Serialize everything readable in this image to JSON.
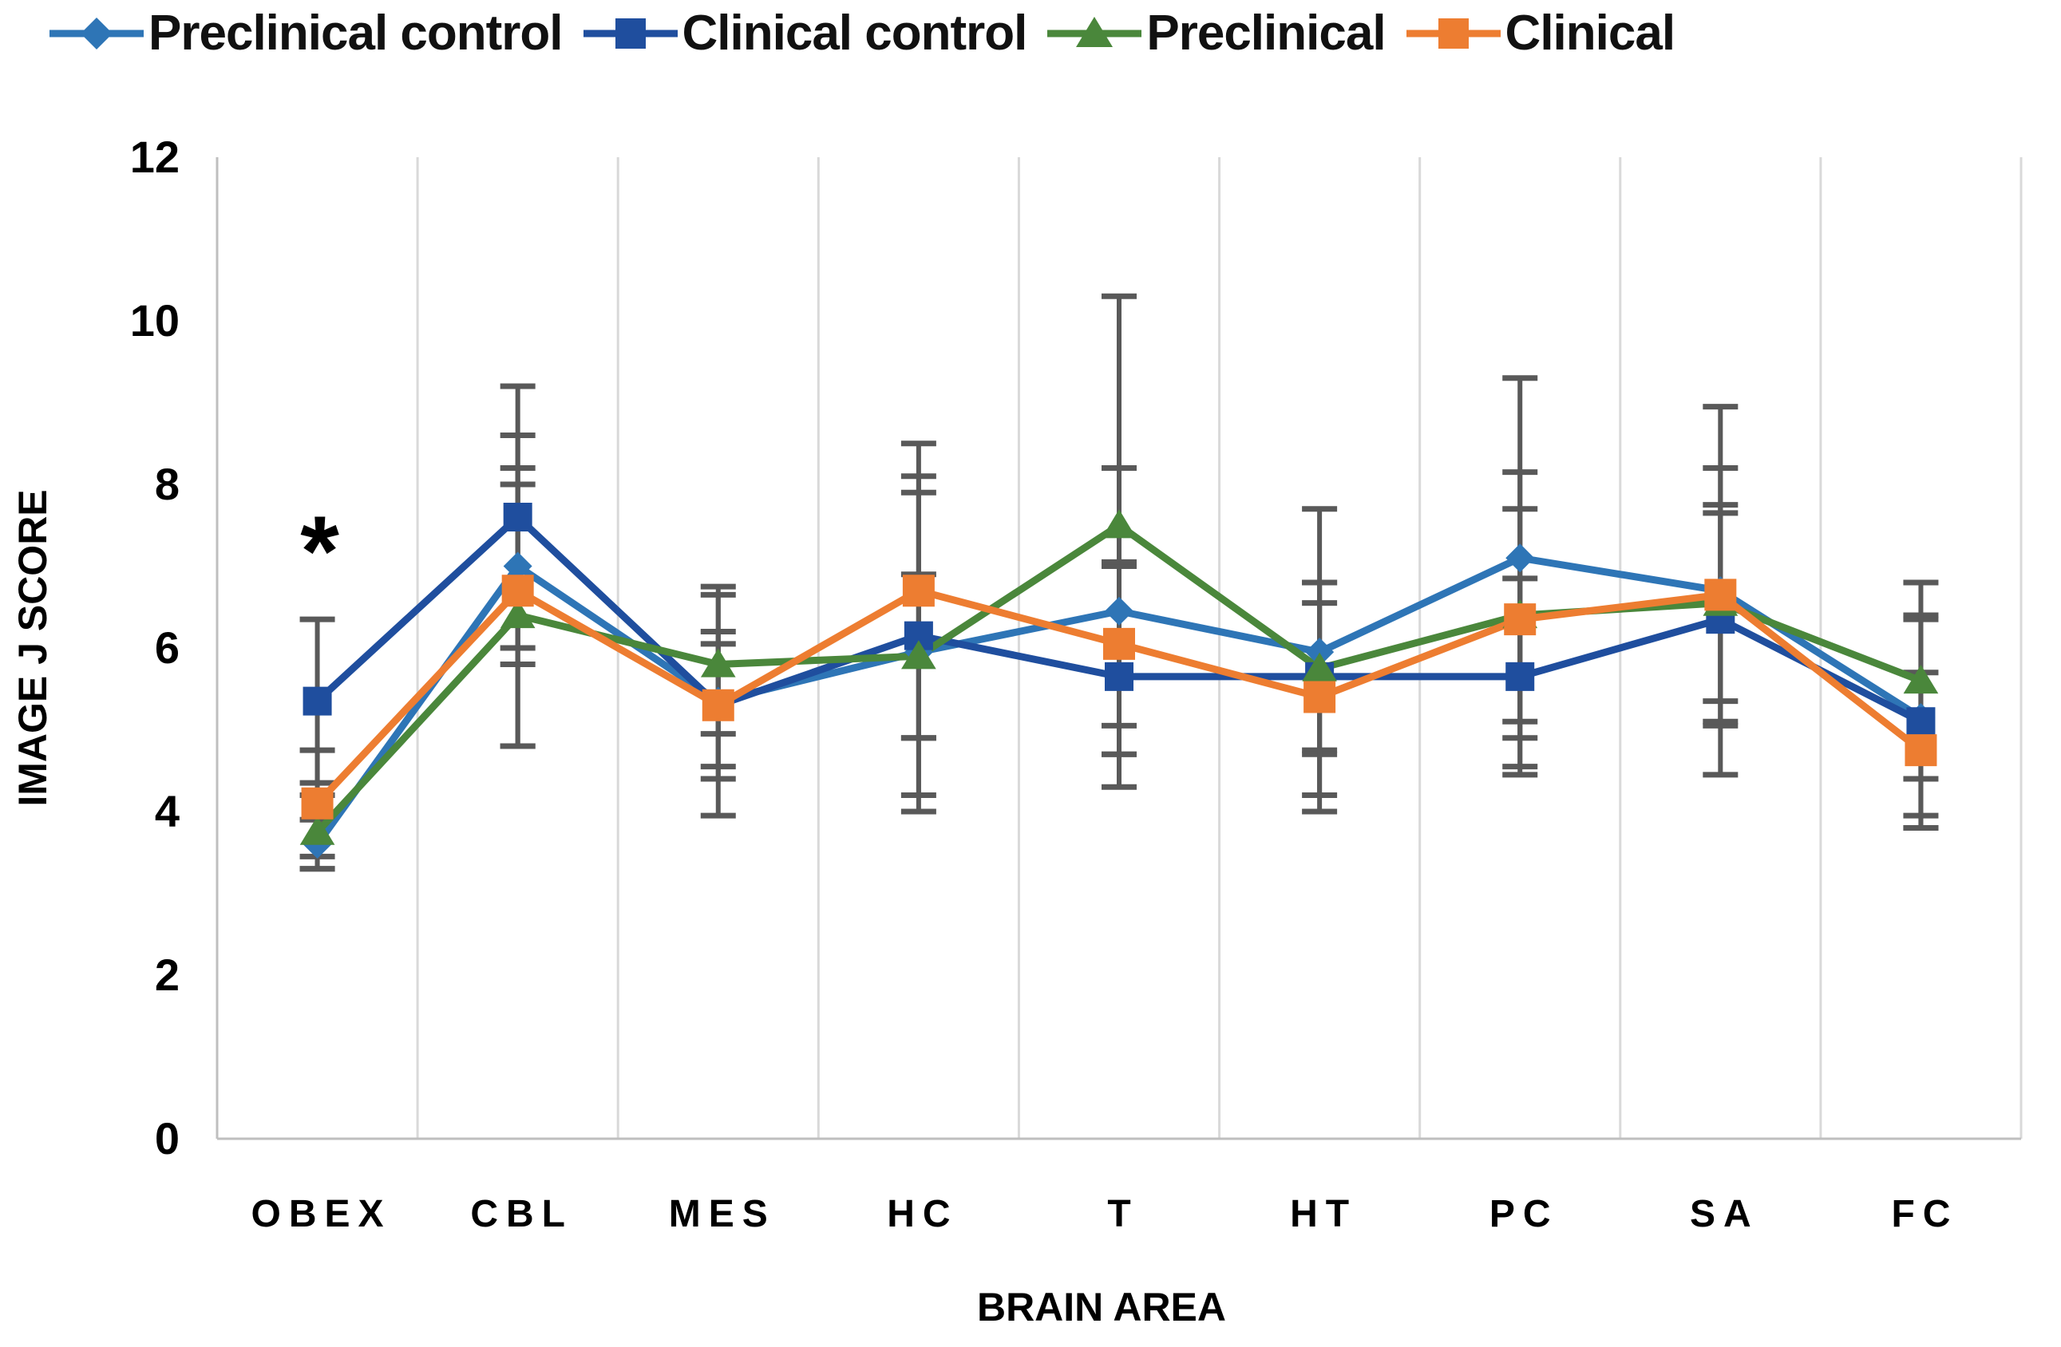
{
  "chart_data": {
    "type": "line",
    "title": "",
    "xlabel": "BRAIN AREA",
    "ylabel": "IMAGE J SCORE",
    "categories": [
      "OBEX",
      "CBL",
      "MES",
      "HC",
      "T",
      "HT",
      "PC",
      "SA",
      "FC"
    ],
    "ylim": [
      0,
      12
    ],
    "yticks": [
      0,
      2,
      4,
      6,
      8,
      10,
      12
    ],
    "grid": "vertical-only",
    "legend_position": "top",
    "error_bars": true,
    "annotations": [
      {
        "text": "*",
        "category": "OBEX",
        "value": 7.3,
        "meaning": "significance-marker"
      }
    ],
    "series": [
      {
        "name": "Preclinical control",
        "marker": "diamond",
        "color": "#2E75B6",
        "values": [
          3.6,
          7.0,
          5.35,
          5.95,
          6.45,
          5.95,
          7.1,
          6.7,
          5.15
        ],
        "err": [
          0.3,
          1.2,
          1.4,
          1.95,
          1.75,
          1.75,
          2.2,
          2.25,
          1.2
        ]
      },
      {
        "name": "Clinical control",
        "marker": "square",
        "color": "#1F4E9E",
        "values": [
          5.35,
          7.6,
          5.3,
          6.15,
          5.65,
          5.65,
          5.65,
          6.35,
          5.1
        ],
        "err": [
          1.0,
          1.6,
          0.75,
          1.95,
          1.35,
          0.9,
          1.2,
          1.3,
          1.3
        ]
      },
      {
        "name": "Preclinical",
        "marker": "triangle",
        "color": "#4A873B",
        "values": [
          3.75,
          6.4,
          5.8,
          5.9,
          7.5,
          5.75,
          6.4,
          6.55,
          5.6
        ],
        "err": [
          0.45,
          1.6,
          0.85,
          1.0,
          2.8,
          1.05,
          1.3,
          1.2,
          1.2
        ]
      },
      {
        "name": "Clinical",
        "marker": "square",
        "color": "#ED7D31",
        "values": [
          4.1,
          6.7,
          5.3,
          6.7,
          6.05,
          5.4,
          6.35,
          6.65,
          4.75
        ],
        "err": [
          0.65,
          1.9,
          0.9,
          1.8,
          1.0,
          1.4,
          1.8,
          1.55,
          0.95
        ]
      }
    ],
    "colors": {
      "error_bar": "#595959",
      "gridline": "#D9D9D9",
      "axis_line": "#BFBFBF",
      "text": "#000000",
      "background": "#FFFFFF"
    }
  }
}
